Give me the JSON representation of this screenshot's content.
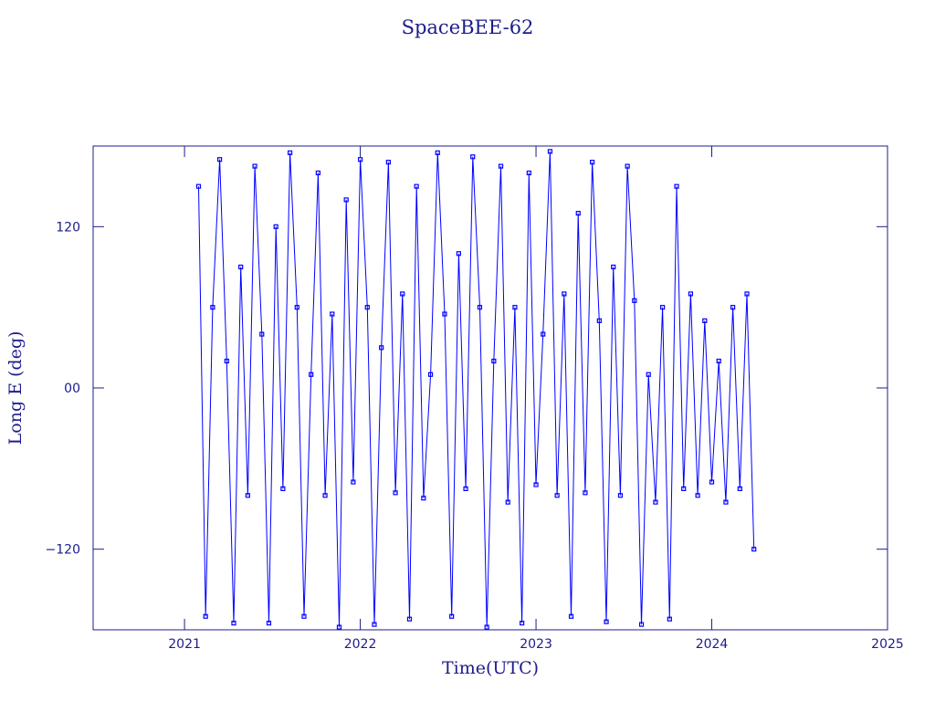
{
  "chart_data": {
    "type": "line",
    "title": "SpaceBEE-62",
    "x_label": "Time(UTC)",
    "y_label": "Long E (deg)",
    "color": "#0000ff",
    "xlim": [
      2020.48,
      2025.0
    ],
    "xticks": [
      2021,
      2022,
      2023,
      2024,
      2025
    ],
    "ylim": [
      -180,
      180
    ],
    "yticks": [
      {
        "value": -120,
        "label": "−120"
      },
      {
        "value": 0,
        "label": "00"
      },
      120
    ],
    "x": [
      2021.08,
      2021.12,
      2021.16,
      2021.2,
      2021.24,
      2021.28,
      2021.32,
      2021.36,
      2021.4,
      2021.44,
      2021.48,
      2021.52,
      2021.56,
      2021.6,
      2021.64,
      2021.68,
      2021.72,
      2021.76,
      2021.8,
      2021.84,
      2021.88,
      2021.92,
      2021.96,
      2022.0,
      2022.04,
      2022.08,
      2022.12,
      2022.16,
      2022.2,
      2022.24,
      2022.28,
      2022.32,
      2022.36,
      2022.4,
      2022.44,
      2022.48,
      2022.52,
      2022.56,
      2022.6,
      2022.64,
      2022.68,
      2022.72,
      2022.76,
      2022.8,
      2022.84,
      2022.88,
      2022.92,
      2022.96,
      2023.0,
      2023.04,
      2023.08,
      2023.12,
      2023.16,
      2023.2,
      2023.24,
      2023.28,
      2023.32,
      2023.36,
      2023.4,
      2023.44,
      2023.48,
      2023.52,
      2023.56,
      2023.6,
      2023.64,
      2023.68,
      2023.72,
      2023.76,
      2023.8,
      2023.84,
      2023.88,
      2023.92,
      2023.96,
      2024.0,
      2024.04,
      2024.08,
      2024.12,
      2024.16,
      2024.2,
      2024.24
    ],
    "values": [
      150,
      -170,
      60,
      170,
      20,
      -175,
      90,
      -80,
      165,
      40,
      -175,
      120,
      -75,
      175,
      60,
      -170,
      10,
      160,
      -80,
      55,
      -178,
      140,
      -70,
      170,
      60,
      -176,
      30,
      168,
      -78,
      70,
      -172,
      150,
      -82,
      10,
      175,
      55,
      -170,
      100,
      -75,
      172,
      60,
      -178,
      20,
      165,
      -85,
      60,
      -175,
      160,
      -72,
      40,
      176,
      -80,
      70,
      -170,
      130,
      -78,
      168,
      50,
      -174,
      90,
      -80,
      165,
      65,
      -176,
      10,
      -85,
      60,
      -172,
      150,
      -75,
      70,
      -80,
      50,
      -70,
      20,
      -85,
      60,
      -75,
      70,
      -120
    ]
  }
}
